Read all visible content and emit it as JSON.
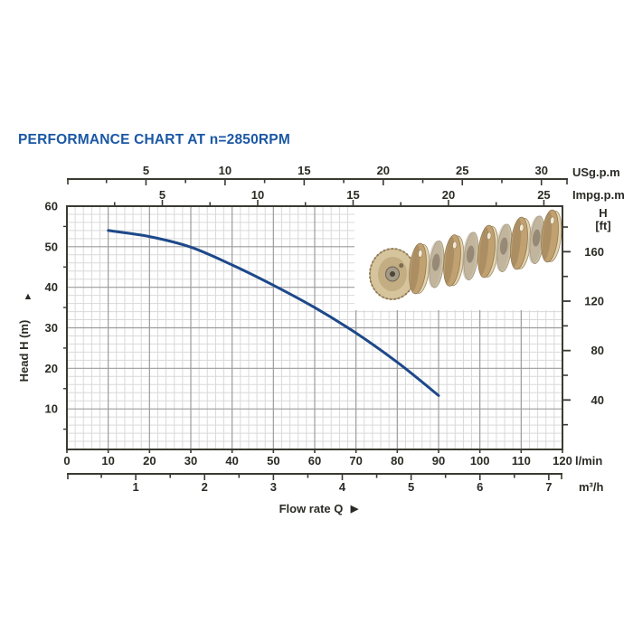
{
  "title": "PERFORMANCE CHART AT n=2850RPM",
  "colors": {
    "title": "#1a57a5",
    "curve": "#1d4889",
    "axis": "#3a3a32",
    "grid_major": "#9c9c9c",
    "grid_minor": "#d9d9d9",
    "text": "#2b2b25",
    "inset_bg": "#ffffff"
  },
  "impeller_colors": {
    "tan": "#c1a170",
    "tan_dark": "#a2845c",
    "tan_light": "#e3d4ae",
    "face": "#d6c49c",
    "face_inner": "#c3ad82",
    "pale_disc": "#cfc3a6",
    "spacer_gray": "#b3a894",
    "hole": "#8e8270",
    "hub": "#a49a88",
    "hub_dark": "#4e4537",
    "outline": "#93causeless"
  },
  "labels": {
    "usgpm": "USg.p.m",
    "impgpm": "Impg.p.m",
    "lmin": "l/min",
    "m3h": "m³/h",
    "flow_rate": "Flow rate Q",
    "head_axis": "Head H (m)",
    "ft_header_line1": "H",
    "ft_header_line2": "[ft]",
    "arrow_up": "▲",
    "arrow_right": "▶"
  },
  "inset": {
    "description": "Photo of multistage pump impeller stack on a shaft"
  },
  "chart_data": {
    "type": "line",
    "title": "PERFORMANCE CHART AT n=2850RPM",
    "xlabel": "Flow rate Q",
    "ylabel_left": "Head H (m)",
    "ylabel_right": "H [ft]",
    "xlim_lmin": [
      0,
      120
    ],
    "ylim_m": [
      0,
      60
    ],
    "grid": "on",
    "axes": {
      "lmin": {
        "unit": "l/min",
        "major_ticks": [
          0,
          10,
          20,
          30,
          40,
          50,
          60,
          70,
          80,
          90,
          100,
          110,
          120
        ],
        "minor_step": 2
      },
      "m3h": {
        "unit": "m³/h",
        "major_ticks": [
          1,
          2,
          3,
          4,
          5,
          6,
          7
        ],
        "minor_step": 0.5,
        "lmin_per_unit": 16.67
      },
      "usgpm": {
        "unit": "USg.p.m",
        "major_ticks": [
          5,
          10,
          15,
          20,
          25,
          30
        ],
        "minor_step": 2.5,
        "lmin_per_unit": 3.83
      },
      "impgpm": {
        "unit": "Impg.p.m",
        "major_ticks": [
          5,
          10,
          15,
          20,
          25
        ],
        "minor_step": 2.5,
        "lmin_per_unit": 4.62
      },
      "head_m": {
        "unit": "m",
        "major_ticks": [
          10,
          20,
          30,
          40,
          50,
          60
        ],
        "minor_step": 2,
        "edge_tick_values": [
          5,
          15,
          25,
          35,
          45,
          55
        ]
      },
      "head_ft": {
        "unit": "ft",
        "major_ticks": [
          40,
          80,
          120,
          160
        ],
        "minor_ticks": [
          20,
          60,
          100,
          140,
          180
        ],
        "m_per_ft": 0.3048
      }
    },
    "series": [
      {
        "name": "head_vs_flow",
        "color": "#1d4889",
        "points_lmin_m": [
          [
            10,
            54
          ],
          [
            20,
            52.5
          ],
          [
            30,
            49.9
          ],
          [
            40,
            45.5
          ],
          [
            50,
            40.5
          ],
          [
            60,
            35
          ],
          [
            70,
            28.7
          ],
          [
            80,
            21.5
          ],
          [
            90,
            13.3
          ]
        ]
      }
    ]
  }
}
